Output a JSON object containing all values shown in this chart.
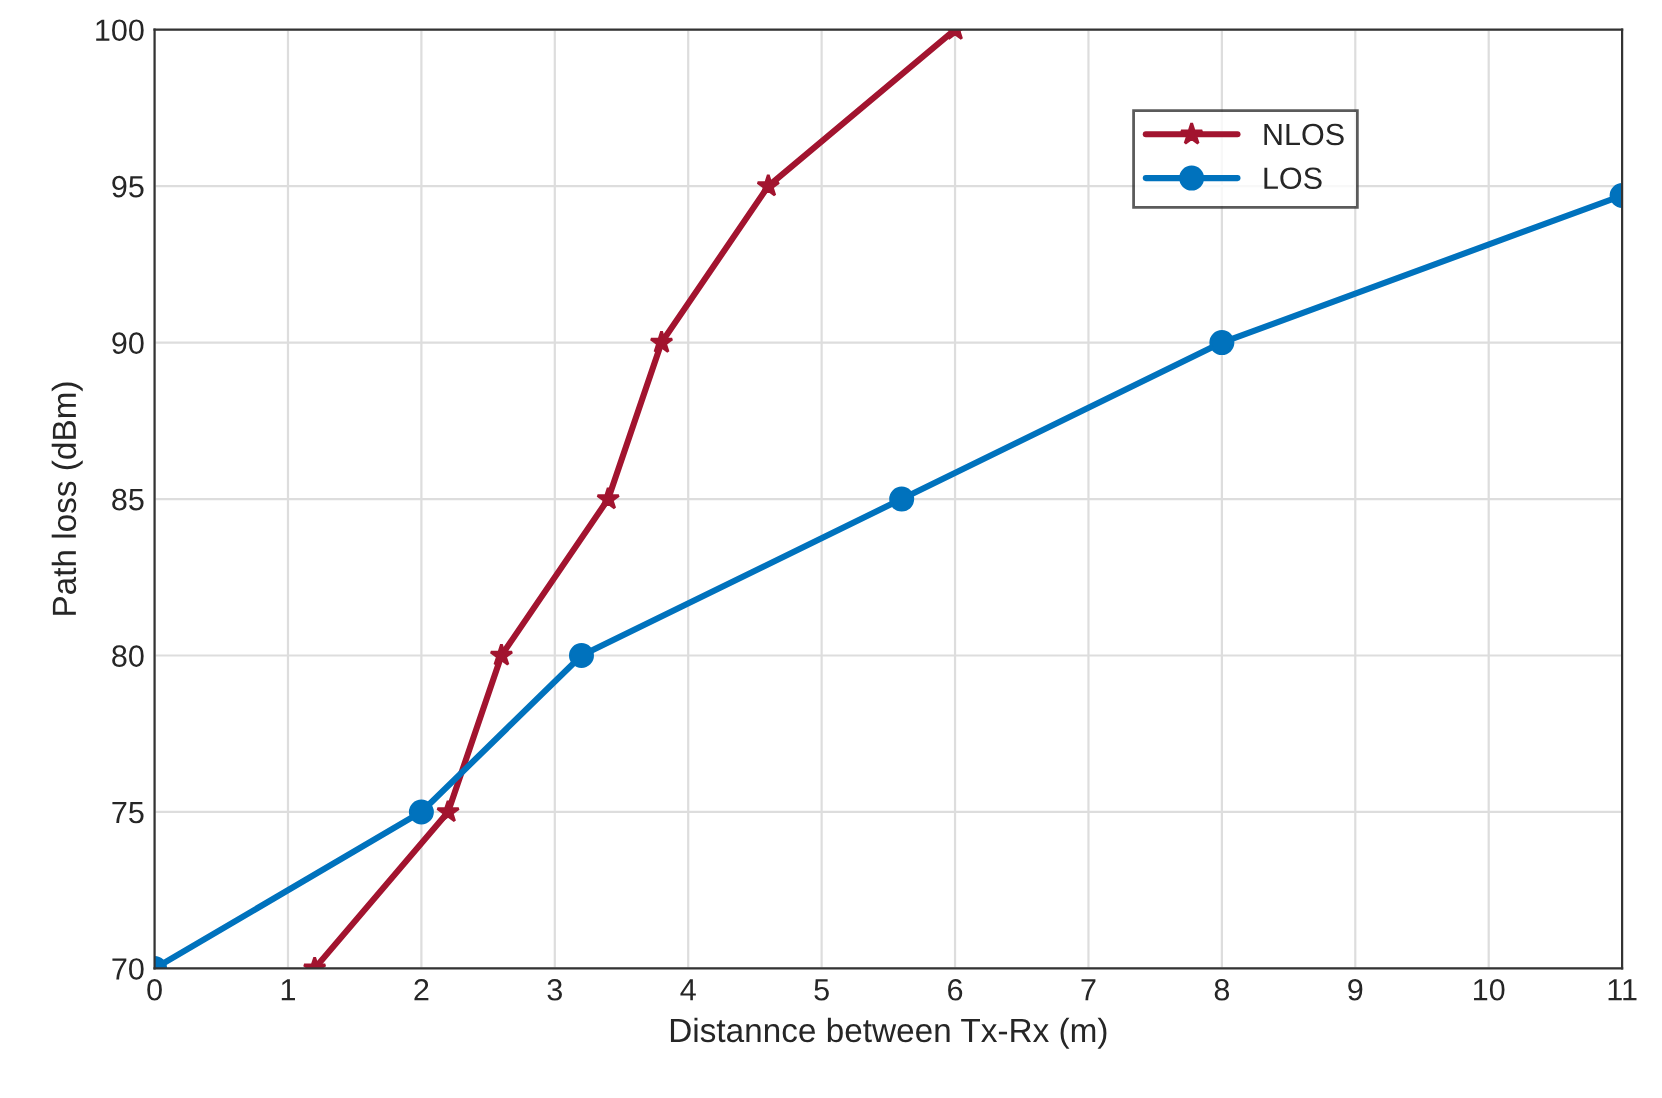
{
  "chart_data": {
    "type": "line",
    "xlabel": "Distannce between Tx-Rx (m)",
    "ylabel": "Path loss (dBm)",
    "xlim": [
      0,
      11
    ],
    "xticks": [
      0,
      1,
      2,
      3,
      4,
      5,
      6,
      7,
      8,
      9,
      10,
      11
    ],
    "ylim": [
      70,
      100
    ],
    "yticks": [
      70,
      75,
      80,
      85,
      90,
      95,
      100
    ],
    "grid": true,
    "legend": "top right",
    "series": [
      {
        "name": "NLOS",
        "color": "#a2142f",
        "marker": "star",
        "x": [
          1.2,
          2.2,
          2.6,
          3.4,
          3.8,
          4.6,
          6
        ],
        "values": [
          70,
          75,
          80,
          85,
          90,
          95,
          100
        ]
      },
      {
        "name": "LOS",
        "color": "#0072bd",
        "marker": "circle",
        "x": [
          0,
          2,
          3.2,
          5.6,
          8,
          11
        ],
        "values": [
          70,
          75,
          80,
          85,
          90,
          94.7
        ]
      }
    ]
  }
}
